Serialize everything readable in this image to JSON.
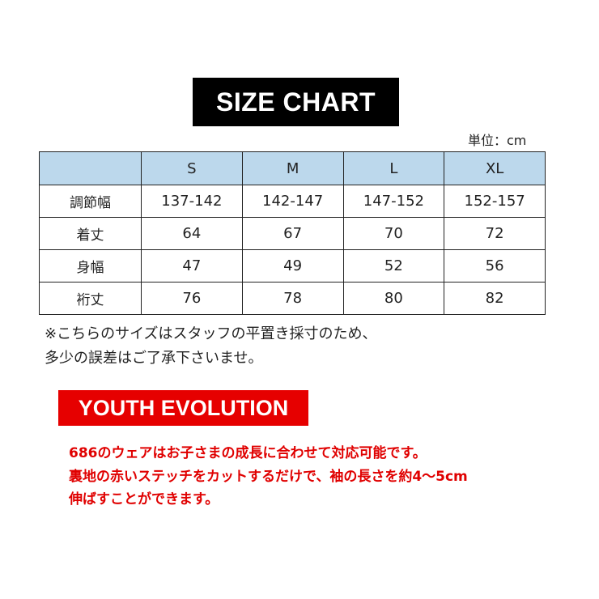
{
  "title": "SIZE CHART",
  "unit_label": "単位：cm",
  "table": {
    "headers": [
      "",
      "S",
      "M",
      "L",
      "XL"
    ],
    "rows": [
      [
        "調節幅",
        "137-142",
        "142-147",
        "147-152",
        "152-157"
      ],
      [
        "着丈",
        "64",
        "67",
        "70",
        "72"
      ],
      [
        "身幅",
        "47",
        "49",
        "52",
        "56"
      ],
      [
        "裄丈",
        "76",
        "78",
        "80",
        "82"
      ]
    ]
  },
  "notes": [
    "※こちらのサイズはスタッフの平置き採寸のため、",
    "多少の誤差はご了承下さいませ。"
  ],
  "youth": {
    "label": "YOUTH EVOLUTION",
    "lines": [
      "686のウェアはお子さまの成長に合わせて対応可能です。",
      "裏地の赤いステッチをカットするだけで、袖の長さを約4～5cm",
      "伸ばすことができます。"
    ]
  },
  "colors": {
    "header_bg": "#bcd8ec",
    "accent_red": "#e60000",
    "title_bg": "#000000"
  }
}
